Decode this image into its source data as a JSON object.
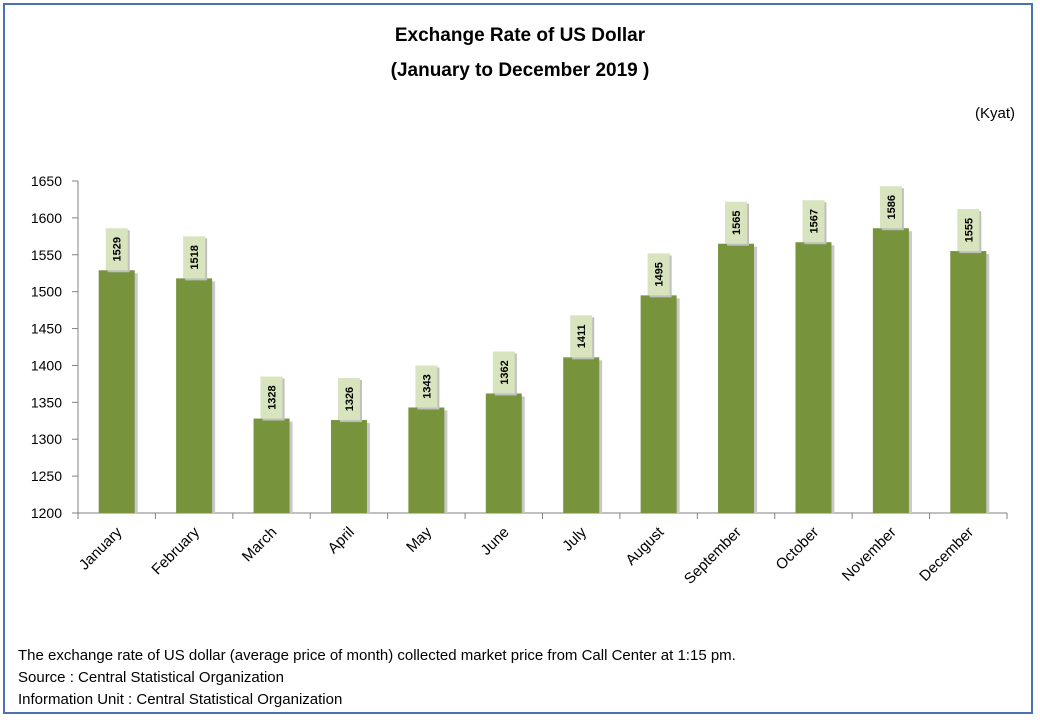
{
  "chart_data": {
    "type": "bar",
    "title": "Exchange Rate of US Dollar",
    "subtitle": "(January  to December 2019 )",
    "unit": "(Kyat)",
    "categories": [
      "January",
      "February",
      "March",
      "April",
      "May",
      "June",
      "July",
      "August",
      "September",
      "October",
      "November",
      "December"
    ],
    "values": [
      1529,
      1518,
      1328,
      1326,
      1343,
      1362,
      1411,
      1495,
      1565,
      1567,
      1586,
      1555
    ],
    "yticks": [
      1200,
      1250,
      1300,
      1350,
      1400,
      1450,
      1500,
      1550,
      1600,
      1650
    ],
    "ylim": [
      1200,
      1650
    ],
    "xlabel": "",
    "ylabel": "",
    "grid": false,
    "legend": "none"
  },
  "colors": {
    "bar": "#77933c",
    "label_bg": "#d7e4bd",
    "border": "#4a72b0",
    "axis": "#808080"
  },
  "footnotes": {
    "note": "The exchange rate of  US dollar (average price of month) collected market price from Call Center at 1:15 pm.",
    "source": "Source : Central Statistical Organization",
    "info_unit": "Information Unit : Central Statistical Organization"
  }
}
